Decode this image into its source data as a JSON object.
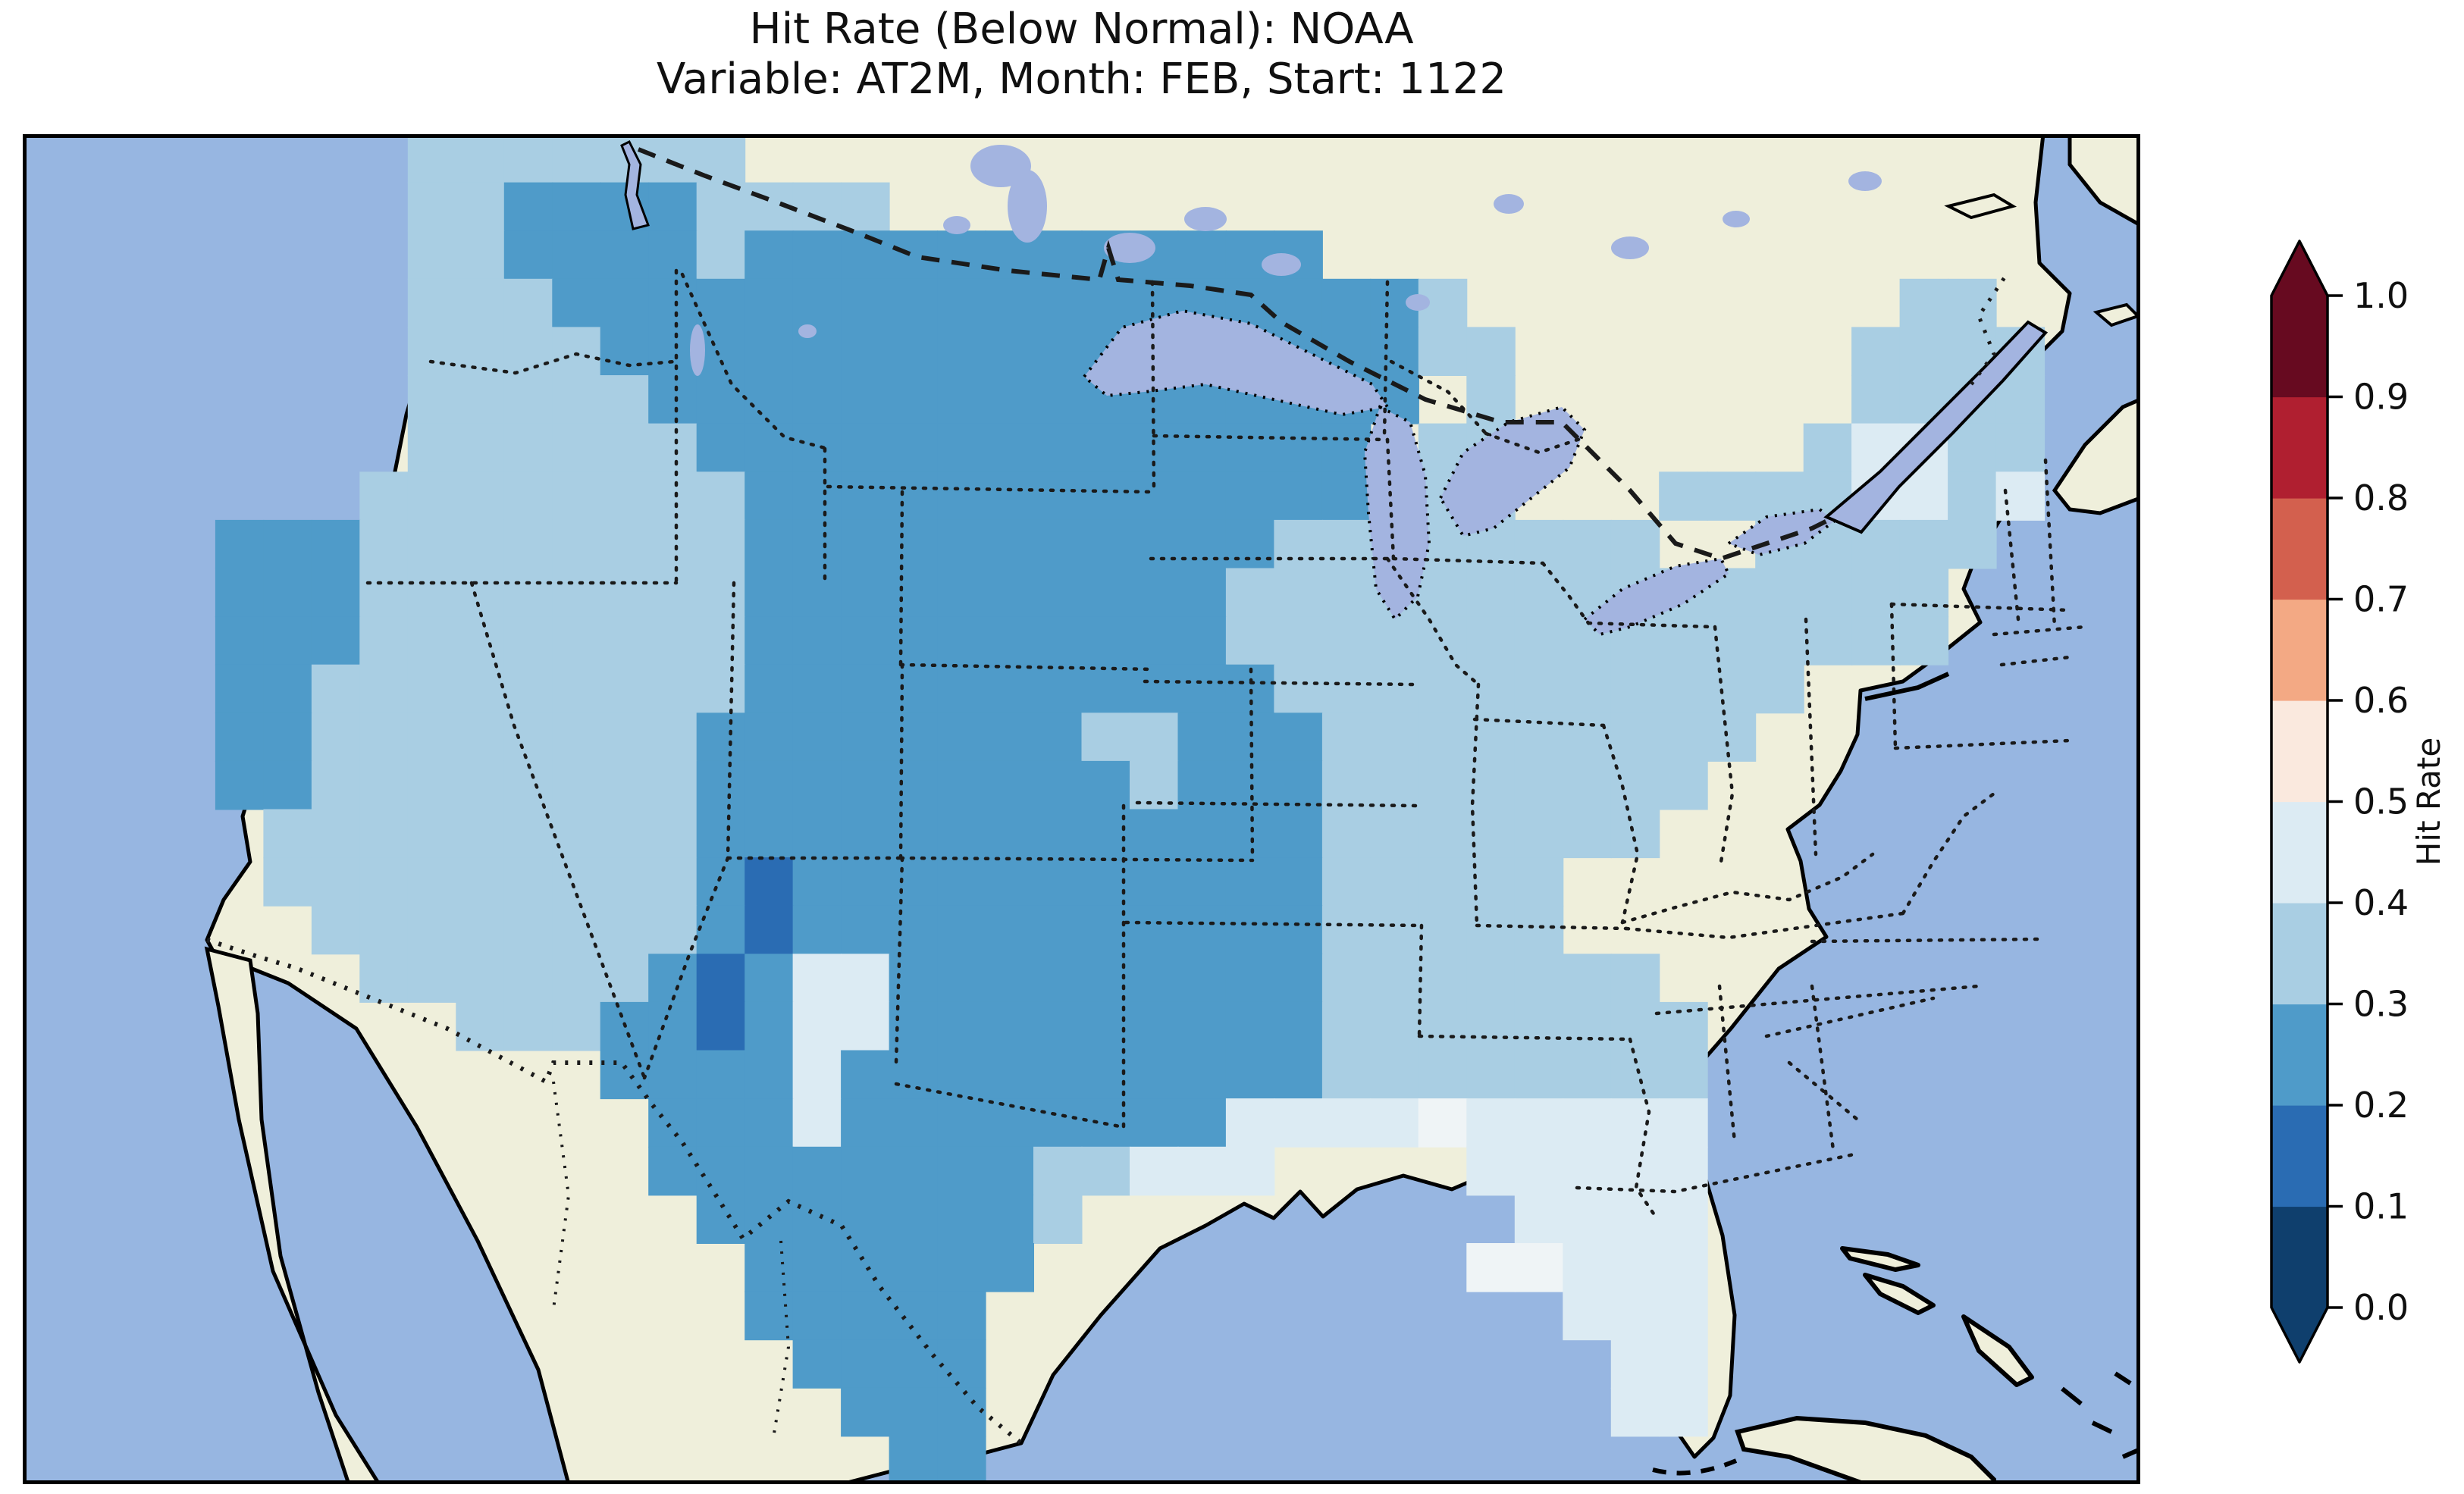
{
  "title": {
    "line1": "Hit Rate (Below Normal): NOAA",
    "line2": "Variable: AT2M, Month: FEB, Start: 1122"
  },
  "chart_data": {
    "type": "heatmap",
    "title": "Hit Rate (Below Normal): NOAA",
    "subtitle": "Variable: AT2M, Month: FEB, Start: 1122",
    "source": "NOAA",
    "variable": "AT2M",
    "month": "FEB",
    "start": "1122",
    "metric": "Hit Rate (Below Normal)",
    "region": "Contiguous United States",
    "value_range": [
      0.0,
      1.0
    ],
    "dominant_value_bins": [
      "0.2-0.3",
      "0.3-0.4"
    ],
    "colorbar": {
      "label": "Hit Rate",
      "ticks": [
        "0.0",
        "0.1",
        "0.2",
        "0.3",
        "0.4",
        "0.5",
        "0.6",
        "0.7",
        "0.8",
        "0.9",
        "1.0"
      ],
      "bin_colors": [
        "#0f3f6d",
        "#2a6cb3",
        "#4f9bc9",
        "#a9cee3",
        "#dcebf3",
        "#fae9de",
        "#f3a984",
        "#d3604e",
        "#b01f30",
        "#670a20"
      ],
      "extend": "both",
      "under_color": "#0f3f6d",
      "over_color": "#670a20",
      "position": "right"
    },
    "map": {
      "ocean_color": "#97b6e1",
      "land_color": "#efefdb",
      "lake_color": "#a3b4e0",
      "coast_color": "#000000",
      "border_line_color": "#1a1a1a",
      "state_borders": "dotted",
      "country_borders": "dashed"
    },
    "grid": {
      "rows": 28,
      "cols": 44,
      "category_colors": {
        "L": "#a9cee3",
        "M": "#4f9bc9",
        "P": "#dcebf3",
        "D": "#2a6cb3",
        "W": "#eff4f6"
      },
      "category_value_bins": {
        "D": "0.1-0.2",
        "M": "0.2-0.3",
        "L": "0.3-0.4",
        "P": "0.4-0.5",
        "W": "0.5-0.6"
      },
      "cells": [
        "........LLLLLLL.............................",
        "........LLMMMMLLLL..........................",
        "........LLMMMMLMMMMMMMMMMMM.................",
        "........LLLMMMMMMMMMMMMMMMMMML.........LL...",
        "........LLLLMMMMMMMMMMMMMMMMMLL.......LLLL..",
        "........LLLLLMMMMMMMMMMMMMMMM.L.......LLLL..",
        "........LLLLLLMMMMMMMMMMMMMM.LL......LPPLL..",
        ".......LLLLLLLLMMMMMMMMMMMMM.LL...LLLLPPLP..",
        "....MMMLLLLLLLLMMMMMMMMMMMLLLLLLLL..LLLLL...",
        "....MMMLLLLLLLLMMMMMMMMMMLLLLLLLLLLLLLLL....",
        "....MMMLLLLLLLLMMMMMMMMMMLLLLLLLLLLLLLLL....",
        "....MMLLLLLLLLLMMMMMMMMMMMLLLLLLLLLLL.......",
        "....MMLLLLLLLLMMMMMMMMLLMMMLLLLLLLLL........",
        "....MMLLLLLLLLMMMMMMMMMLMMMLLLLLLLL.........",
        ".....LLLLLLLLLMMMMMMMMMMMMMLLLLLLL..........",
        ".....LLLLLLLLLMDMMMMMMMMMMMLLLLL............",
        "......LLLLLLLLMDMMMMMMMMMMMLLLLL............",
        ".......LLLLLLMDMPPMMMMMMMMMLLLLLLL..........",
        ".........LLLMMDMPPMMMMMMMMMLLLLLLLL.........",
        "............MMMMPMMMMMMMMMMLLLLLLLL.........",
        ".............MMMPMMMMMMMMPPPPWPPPPP.........",
        ".............MMMMMMMMLLPPP....PPPPP.........",
        "..............MMMMMMML.........PPPP.........",
        "...............MMMMMM.........WWPPP.........",
        "...............MMMMM............PPP.........",
        "................MMMM.............PP.........",
        ".................MMM.............PP.........",
        "..................MM........................"
      ]
    }
  }
}
